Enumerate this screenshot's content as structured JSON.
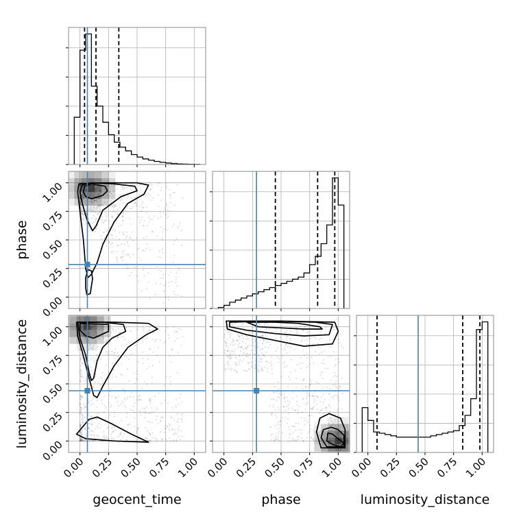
{
  "chart_data": {
    "type": "corner",
    "parameters": [
      "geocent_time",
      "phase",
      "luminosity_distance"
    ],
    "axis_labels": [
      "geocent_time",
      "phase",
      "luminosity_distance"
    ],
    "ticks": [
      "0.00",
      "0.25",
      "0.50",
      "0.75",
      "1.00"
    ],
    "range": [
      0,
      1
    ],
    "grid": true,
    "truths": [
      0.065,
      0.285,
      0.44
    ],
    "quantiles": {
      "geocent_time": [
        0.04,
        0.14,
        0.34
      ],
      "phase": [
        0.45,
        0.82,
        0.97
      ],
      "luminosity_distance": [
        0.08,
        0.83,
        0.98
      ]
    },
    "histograms": {
      "geocent_time": {
        "bin_edges": [
          -0.05,
          0.0,
          0.05,
          0.1,
          0.15,
          0.2,
          0.25,
          0.3,
          0.35,
          0.4,
          0.45,
          0.5,
          0.55,
          0.6,
          0.65,
          0.7,
          0.75,
          0.8,
          0.85,
          0.9,
          0.95,
          1.0,
          1.05
        ],
        "density": [
          0.38,
          0.92,
          1.05,
          0.63,
          0.47,
          0.34,
          0.24,
          0.18,
          0.14,
          0.11,
          0.08,
          0.06,
          0.045,
          0.035,
          0.025,
          0.018,
          0.012,
          0.008,
          0.005,
          0.003,
          0.002,
          0.001
        ]
      },
      "phase": {
        "bin_edges": [
          -0.05,
          0.0,
          0.05,
          0.1,
          0.15,
          0.2,
          0.25,
          0.3,
          0.35,
          0.4,
          0.45,
          0.5,
          0.55,
          0.6,
          0.65,
          0.7,
          0.75,
          0.8,
          0.85,
          0.9,
          0.95,
          1.0,
          1.05
        ],
        "density": [
          0.01,
          0.03,
          0.06,
          0.08,
          0.1,
          0.12,
          0.14,
          0.16,
          0.18,
          0.2,
          0.22,
          0.24,
          0.26,
          0.28,
          0.3,
          0.34,
          0.42,
          0.5,
          0.62,
          0.8,
          1.25,
          0.99
        ]
      },
      "luminosity_distance": {
        "bin_edges": [
          -0.05,
          0.0,
          0.05,
          0.1,
          0.15,
          0.2,
          0.25,
          0.3,
          0.35,
          0.4,
          0.45,
          0.5,
          0.55,
          0.6,
          0.65,
          0.7,
          0.75,
          0.8,
          0.85,
          0.9,
          0.95,
          1.0,
          1.05
        ],
        "density": [
          0.35,
          0.25,
          0.16,
          0.15,
          0.14,
          0.13,
          0.12,
          0.12,
          0.12,
          0.12,
          0.12,
          0.12,
          0.13,
          0.14,
          0.15,
          0.16,
          0.17,
          0.21,
          0.29,
          0.42,
          0.96,
          1.02
        ]
      }
    },
    "joint_panels": [
      {
        "x": "geocent_time",
        "y": "phase",
        "density_peak": [
          0.1,
          0.95
        ],
        "contours": [
          [
            [
              0.1,
              0.86
            ],
            [
              0.2,
              0.89
            ],
            [
              0.24,
              0.93
            ],
            [
              0.22,
              0.97
            ],
            [
              0.1,
              0.99
            ],
            [
              0.04,
              0.97
            ],
            [
              0.03,
              0.92
            ],
            [
              0.05,
              0.88
            ]
          ],
          [
            [
              0.02,
              0.98
            ],
            [
              0.1,
              1.0
            ],
            [
              0.3,
              0.99
            ],
            [
              0.48,
              0.97
            ],
            [
              0.5,
              0.93
            ],
            [
              0.36,
              0.88
            ],
            [
              0.2,
              0.76
            ],
            [
              0.14,
              0.62
            ],
            [
              0.11,
              0.58
            ],
            [
              0.06,
              0.68
            ],
            [
              0.02,
              0.82
            ],
            [
              0.0,
              0.92
            ]
          ],
          [
            [
              -0.01,
              0.99
            ],
            [
              0.2,
              1.0
            ],
            [
              0.5,
              1.0
            ],
            [
              0.6,
              0.98
            ],
            [
              0.56,
              0.9
            ],
            [
              0.42,
              0.82
            ],
            [
              0.3,
              0.66
            ],
            [
              0.2,
              0.46
            ],
            [
              0.15,
              0.3
            ],
            [
              0.1,
              0.2
            ],
            [
              0.07,
              0.17
            ],
            [
              0.05,
              0.25
            ],
            [
              0.03,
              0.5
            ],
            [
              0.0,
              0.75
            ],
            [
              -0.02,
              0.92
            ]
          ],
          [
            [
              0.1,
              0.23
            ],
            [
              0.11,
              0.16
            ],
            [
              0.09,
              0.03
            ],
            [
              0.06,
              0.02
            ],
            [
              0.05,
              0.08
            ],
            [
              0.05,
              0.17
            ],
            [
              0.07,
              0.24
            ]
          ]
        ]
      },
      {
        "x": "geocent_time",
        "y": "luminosity_distance",
        "density_peak": [
          0.06,
          1.0
        ],
        "contours": [
          [
            [
              0.0,
              1.03
            ],
            [
              0.25,
              1.02
            ],
            [
              0.25,
              0.96
            ],
            [
              0.12,
              0.9
            ],
            [
              0.05,
              0.92
            ],
            [
              0.0,
              0.97
            ]
          ],
          [
            [
              -0.02,
              1.04
            ],
            [
              0.2,
              1.04
            ],
            [
              0.38,
              1.02
            ],
            [
              0.4,
              0.96
            ],
            [
              0.28,
              0.9
            ],
            [
              0.2,
              0.82
            ],
            [
              0.15,
              0.7
            ],
            [
              0.12,
              0.55
            ],
            [
              0.1,
              0.53
            ],
            [
              0.08,
              0.6
            ],
            [
              0.05,
              0.75
            ],
            [
              0.0,
              0.9
            ]
          ],
          [
            [
              -0.03,
              1.04
            ],
            [
              0.3,
              1.04
            ],
            [
              0.6,
              1.03
            ],
            [
              0.68,
              0.98
            ],
            [
              0.58,
              0.93
            ],
            [
              0.42,
              0.82
            ],
            [
              0.3,
              0.66
            ],
            [
              0.2,
              0.48
            ],
            [
              0.15,
              0.38
            ],
            [
              0.12,
              0.4
            ],
            [
              0.08,
              0.55
            ],
            [
              0.02,
              0.78
            ],
            [
              -0.02,
              0.92
            ]
          ],
          [
            [
              -0.03,
              0.06
            ],
            [
              0.05,
              0.02
            ],
            [
              0.3,
              0.0
            ],
            [
              0.6,
              -0.01
            ],
            [
              0.45,
              0.06
            ],
            [
              0.28,
              0.15
            ],
            [
              0.15,
              0.21
            ],
            [
              0.08,
              0.19
            ],
            [
              0.02,
              0.12
            ]
          ]
        ]
      },
      {
        "x": "phase",
        "y": "luminosity_distance",
        "density_peak": [
          1.0,
          0.0
        ],
        "contours": [
          [
            [
              0.2,
              1.04
            ],
            [
              0.45,
              1.04
            ],
            [
              0.65,
              1.03
            ],
            [
              0.84,
              1.0
            ],
            [
              0.86,
              0.98
            ],
            [
              0.7,
              0.98
            ],
            [
              0.5,
              0.99
            ],
            [
              0.3,
              1.0
            ]
          ],
          [
            [
              0.05,
              1.04
            ],
            [
              0.4,
              1.05
            ],
            [
              0.8,
              1.04
            ],
            [
              0.95,
              1.02
            ],
            [
              0.92,
              0.93
            ],
            [
              0.7,
              0.92
            ],
            [
              0.45,
              0.94
            ],
            [
              0.2,
              0.97
            ],
            [
              0.05,
              1.0
            ]
          ],
          [
            [
              0.02,
              1.05
            ],
            [
              0.5,
              1.05
            ],
            [
              0.97,
              1.04
            ],
            [
              1.0,
              0.96
            ],
            [
              0.95,
              0.85
            ],
            [
              0.7,
              0.83
            ],
            [
              0.45,
              0.88
            ],
            [
              0.2,
              0.93
            ],
            [
              0.03,
              0.98
            ]
          ],
          [
            [
              0.91,
              0.07
            ],
            [
              0.95,
              0.06
            ],
            [
              1.0,
              0.02
            ],
            [
              1.05,
              -0.02
            ],
            [
              1.02,
              -0.05
            ],
            [
              0.95,
              -0.03
            ],
            [
              0.9,
              0.0
            ]
          ],
          [
            [
              0.87,
              0.1
            ],
            [
              0.94,
              0.12
            ],
            [
              1.0,
              0.1
            ],
            [
              1.05,
              0.05
            ],
            [
              1.05,
              -0.05
            ],
            [
              0.9,
              -0.05
            ],
            [
              0.85,
              0.03
            ]
          ],
          [
            [
              0.84,
              0.2
            ],
            [
              0.92,
              0.24
            ],
            [
              1.02,
              0.2
            ],
            [
              1.06,
              0.1
            ],
            [
              1.06,
              -0.06
            ],
            [
              0.85,
              -0.06
            ],
            [
              0.81,
              0.08
            ]
          ]
        ]
      }
    ]
  }
}
